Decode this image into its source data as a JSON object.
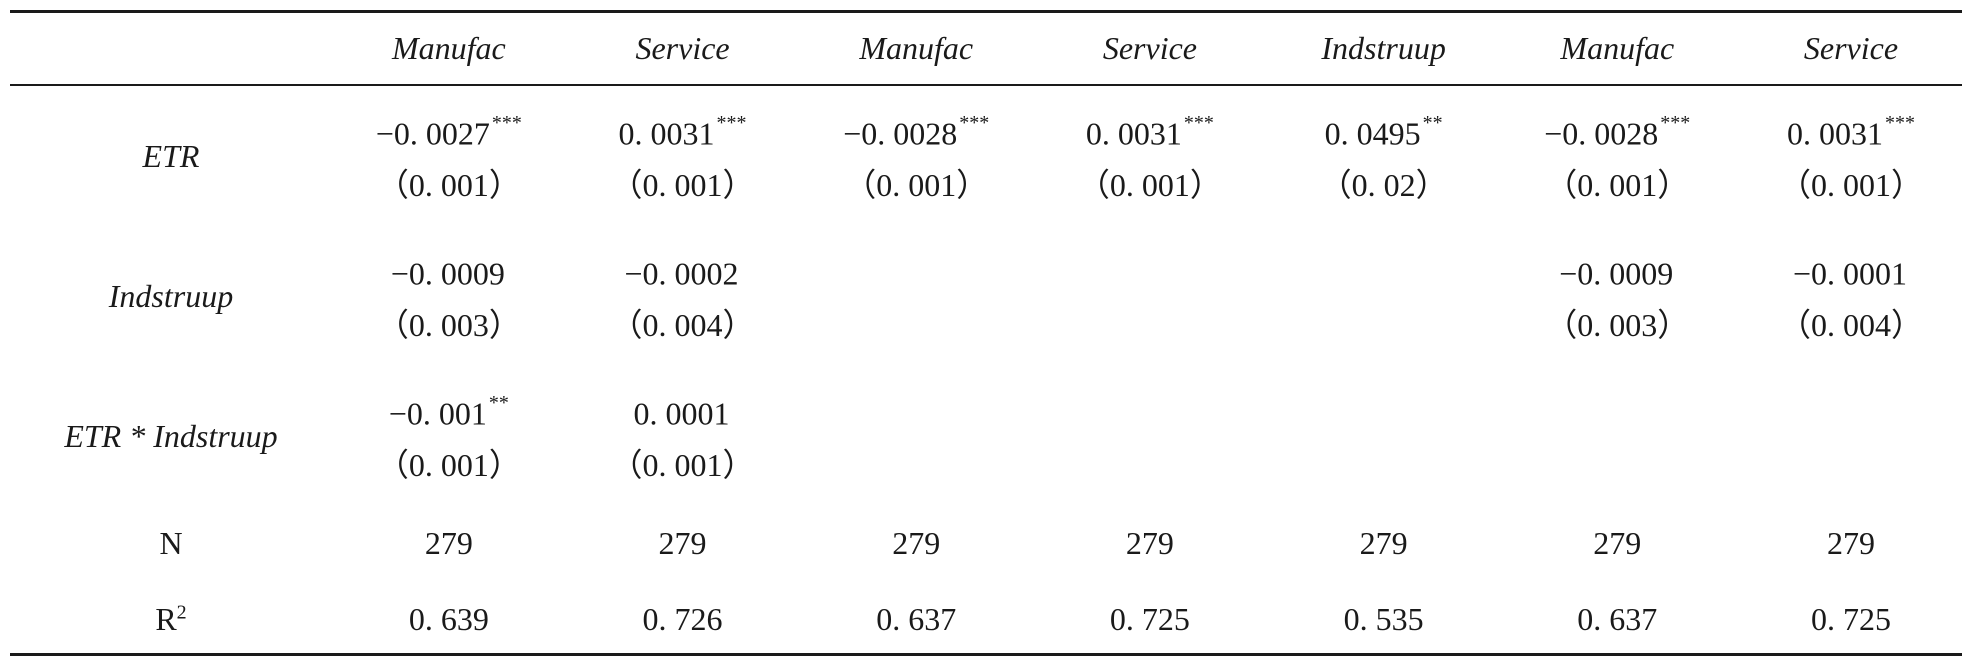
{
  "columns": [
    "",
    "Manufac",
    "Service",
    "Manufac",
    "Service",
    "Indstruup",
    "Manufac",
    "Service"
  ],
  "rows": [
    {
      "label": "ETR",
      "cells": [
        {
          "v": "−0. 0027",
          "s": "***",
          "se": "（0. 001）"
        },
        {
          "v": "0. 0031",
          "s": "***",
          "se": "（0. 001）"
        },
        {
          "v": "−0. 0028",
          "s": "***",
          "se": "（0. 001）"
        },
        {
          "v": "0. 0031",
          "s": "***",
          "se": "（0. 001）"
        },
        {
          "v": "0. 0495",
          "s": "**",
          "se": "（0. 02）"
        },
        {
          "v": "−0. 0028",
          "s": "***",
          "se": "（0. 001）"
        },
        {
          "v": "0. 0031",
          "s": "***",
          "se": "（0. 001）"
        }
      ]
    },
    {
      "label": "Indstruup",
      "cells": [
        {
          "v": "−0. 0009",
          "s": "",
          "se": "（0. 003）"
        },
        {
          "v": "−0. 0002",
          "s": "",
          "se": "（0. 004）"
        },
        {
          "v": "",
          "s": "",
          "se": ""
        },
        {
          "v": "",
          "s": "",
          "se": ""
        },
        {
          "v": "",
          "s": "",
          "se": ""
        },
        {
          "v": "−0. 0009",
          "s": "",
          "se": "（0. 003）"
        },
        {
          "v": "−0. 0001",
          "s": "",
          "se": "（0. 004）"
        }
      ]
    },
    {
      "label": "ETR * Indstruup",
      "cells": [
        {
          "v": "−0. 001",
          "s": "**",
          "se": "（0. 001）"
        },
        {
          "v": "0. 0001",
          "s": "",
          "se": "（0. 001）"
        },
        {
          "v": "",
          "s": "",
          "se": ""
        },
        {
          "v": "",
          "s": "",
          "se": ""
        },
        {
          "v": "",
          "s": "",
          "se": ""
        },
        {
          "v": "",
          "s": "",
          "se": ""
        },
        {
          "v": "",
          "s": "",
          "se": ""
        }
      ]
    }
  ],
  "n_row": {
    "label": "N",
    "values": [
      "279",
      "279",
      "279",
      "279",
      "279",
      "279",
      "279"
    ]
  },
  "r2_row": {
    "label": "R",
    "label_sup": "2",
    "values": [
      "0. 639",
      "0. 726",
      "0. 637",
      "0. 725",
      "0. 535",
      "0. 637",
      "0. 725"
    ]
  }
}
